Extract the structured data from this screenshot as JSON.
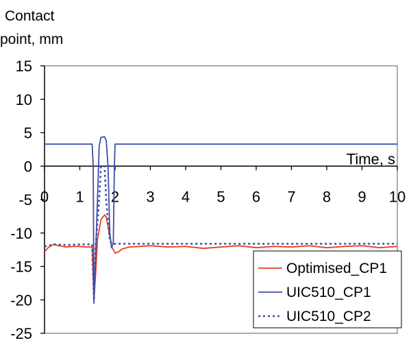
{
  "chart_data": {
    "type": "line",
    "ylabel_lines": [
      "Contact",
      "point, mm"
    ],
    "xlabel": "Time, s",
    "xlim": [
      0,
      10
    ],
    "ylim": [
      -25,
      15
    ],
    "x_ticks": [
      0,
      1,
      2,
      3,
      4,
      5,
      6,
      7,
      8,
      9,
      10
    ],
    "y_ticks": [
      15,
      10,
      5,
      0,
      -5,
      -10,
      -15,
      -20,
      -25
    ],
    "legend_position": "bottom-right",
    "series": [
      {
        "name": "Optimised_CP1",
        "color": "#e8401c",
        "style": "solid",
        "x": [
          0,
          0.1,
          0.25,
          0.4,
          0.6,
          0.8,
          1.0,
          1.2,
          1.35,
          1.4,
          1.45,
          1.5,
          1.6,
          1.7,
          1.75,
          1.8,
          1.9,
          2.0,
          2.1,
          2.2,
          2.4,
          2.7,
          3.0,
          3.5,
          4.0,
          4.5,
          5.0,
          5.5,
          6.0,
          6.5,
          7.0,
          7.5,
          8.0,
          8.5,
          9.0,
          9.5,
          10.0
        ],
        "y": [
          -12.8,
          -12.2,
          -11.7,
          -11.9,
          -12.1,
          -12.0,
          -12.0,
          -12.1,
          -12.1,
          -20.0,
          -16.0,
          -11.0,
          -8.0,
          -7.3,
          -7.6,
          -9.0,
          -12.0,
          -13.0,
          -12.8,
          -12.4,
          -12.1,
          -12.0,
          -11.9,
          -12.1,
          -12.0,
          -12.3,
          -12.1,
          -11.9,
          -12.2,
          -12.0,
          -12.1,
          -11.9,
          -12.2,
          -12.0,
          -11.9,
          -12.2,
          -12.0
        ]
      },
      {
        "name": "UIC510_CP1",
        "color": "#3c4ea8",
        "style": "solid",
        "x": [
          0,
          1.35,
          1.38,
          1.4,
          1.45,
          1.5,
          1.55,
          1.6,
          1.7,
          1.75,
          1.8,
          1.85,
          1.9,
          1.95,
          1.98,
          2.0,
          3.0,
          4.0,
          5.0,
          6.0,
          7.0,
          8.0,
          9.0,
          10.0
        ],
        "y": [
          3.3,
          3.3,
          0.0,
          -20.5,
          -13.0,
          -5.0,
          3.0,
          4.3,
          4.4,
          3.8,
          0.0,
          -10.0,
          -12.2,
          -11.5,
          0.0,
          3.3,
          3.3,
          3.3,
          3.3,
          3.3,
          3.3,
          3.3,
          3.3,
          3.3
        ]
      },
      {
        "name": "UIC510_CP2",
        "color": "#3c4ea8",
        "style": "dotted",
        "x": [
          0,
          0.1,
          0.3,
          0.6,
          1.0,
          1.35,
          1.4,
          1.45,
          1.55,
          1.6,
          1.65,
          1.7,
          1.75,
          1.8,
          1.85,
          1.9,
          1.95,
          2.0,
          2.5,
          3.0,
          4.0,
          5.0,
          6.0,
          7.0,
          8.0,
          9.0,
          10.0
        ],
        "y": [
          -12.0,
          -11.9,
          -11.7,
          -11.8,
          -11.7,
          -11.7,
          -20.0,
          -12.0,
          -5.0,
          0.0,
          0.0,
          0.0,
          -5.0,
          -8.5,
          -11.0,
          -11.6,
          -11.7,
          -11.6,
          -11.6,
          -11.6,
          -11.6,
          -11.6,
          -11.6,
          -11.6,
          -11.6,
          -11.6,
          -11.6
        ]
      }
    ]
  }
}
